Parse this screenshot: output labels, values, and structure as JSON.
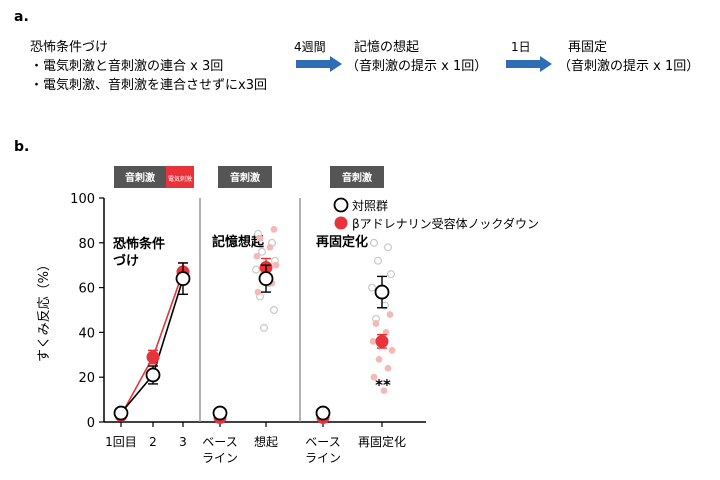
{
  "panel_a": {
    "label": "a.",
    "conditioning_title": "恐怖条件づけ",
    "conditioning_item1": "・電気刺激と音刺激の連合 x 3回",
    "conditioning_item2": "・電気刺激、音刺激を連合させずにx3回",
    "arrow1_label": "4週間",
    "recall_title": "記憶の想起",
    "recall_sub": "（音刺激の提示 x 1回）",
    "arrow2_label": "1日",
    "recon_title": "再固定",
    "recon_sub": "（音刺激の提示 x 1回）",
    "arrow_color": "#2f6db5"
  },
  "panel_b": {
    "label": "b.",
    "stim_boxes": [
      {
        "label": "音刺激"
      },
      {
        "label": "電気刺激"
      },
      {
        "label": "音刺激"
      },
      {
        "label": "音刺激"
      }
    ],
    "phase_labels": [
      "恐怖条件\nづけ",
      "記憶想起",
      "再固定化"
    ],
    "significance": "**"
  },
  "chart_data": {
    "type": "scatter",
    "ylabel": "すくみ反応（%）",
    "ylim": [
      0,
      100
    ],
    "yticks": [
      0,
      20,
      40,
      60,
      80,
      100
    ],
    "x_tick_labels": [
      "1回目",
      "2",
      "3",
      "ベース\nライン",
      "想起",
      "ベース\nライン",
      "再固定化"
    ],
    "legend": [
      "対照群",
      "βアドレナリン受容体ノックダウン"
    ],
    "legend_position": "top-right",
    "colors": {
      "control": "#000000",
      "knockdown": "#e8333a"
    },
    "series": [
      {
        "name": "対照群",
        "style": "open-circle",
        "points": [
          {
            "x": "1回目",
            "y": 4,
            "err": 1
          },
          {
            "x": "2",
            "y": 21,
            "err": 4
          },
          {
            "x": "3",
            "y": 64,
            "err": 7
          },
          {
            "x": "ベースライン(想起)",
            "y": 4,
            "err": 1
          },
          {
            "x": "想起",
            "y": 64,
            "err": 6
          },
          {
            "x": "ベースライン(再固定化)",
            "y": 4,
            "err": 1
          },
          {
            "x": "再固定化",
            "y": 58,
            "err": 7
          }
        ]
      },
      {
        "name": "βアドレナリン受容体ノックダウン",
        "style": "filled-circle",
        "points": [
          {
            "x": "1回目",
            "y": 3,
            "err": 1
          },
          {
            "x": "2",
            "y": 29,
            "err": 3
          },
          {
            "x": "3",
            "y": 67,
            "err": 4
          },
          {
            "x": "ベースライン(想起)",
            "y": 2,
            "err": 1
          },
          {
            "x": "想起",
            "y": 69,
            "err": 4
          },
          {
            "x": "ベースライン(再固定化)",
            "y": 2,
            "err": 1
          },
          {
            "x": "再固定化",
            "y": 36,
            "err": 3
          }
        ]
      }
    ],
    "individual_points": {
      "recall_control": [
        84,
        80,
        76,
        72,
        68,
        62,
        56,
        50,
        42
      ],
      "recall_knockdown": [
        86,
        82,
        78,
        74,
        70,
        66,
        62,
        58
      ],
      "recon_control": [
        80,
        78,
        72,
        66,
        60,
        52,
        46
      ],
      "recon_knockdown": [
        48,
        44,
        40,
        36,
        32,
        28,
        24,
        20,
        14
      ]
    }
  }
}
